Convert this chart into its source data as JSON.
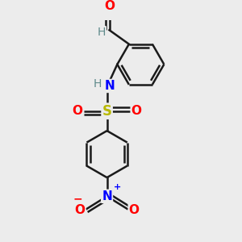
{
  "background_color": "#ececec",
  "atom_colors": {
    "C": "#1a1a1a",
    "H": "#5f8a8b",
    "N": "#0000ff",
    "O": "#ff0000",
    "S": "#b8b800"
  },
  "bond_color": "#1a1a1a",
  "bond_lw": 1.8,
  "figsize": [
    3.0,
    3.0
  ],
  "dpi": 100,
  "xlim": [
    -1.5,
    1.5
  ],
  "ylim": [
    -2.6,
    2.1
  ]
}
